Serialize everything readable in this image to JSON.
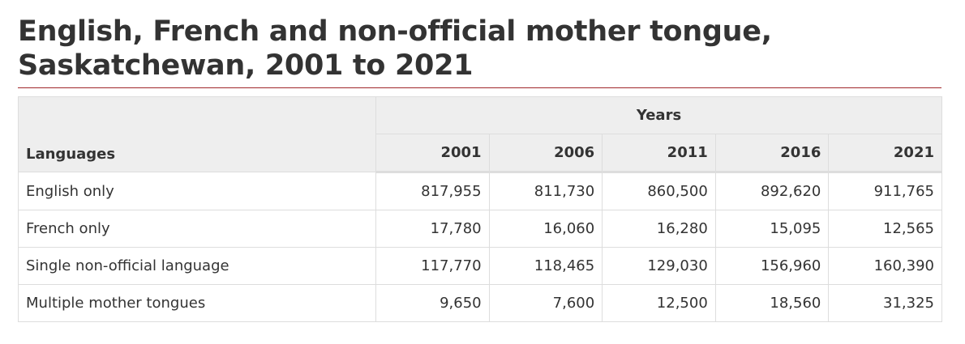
{
  "title": "English, French and non-official mother tongue, Saskatchewan, 2001 to 2021",
  "table": {
    "row_header": "Languages",
    "column_group": "Years",
    "columns": [
      "2001",
      "2006",
      "2011",
      "2016",
      "2021"
    ],
    "rows": [
      {
        "label": "English only",
        "cells": [
          "817,955",
          "811,730",
          "860,500",
          "892,620",
          "911,765"
        ]
      },
      {
        "label": "French only",
        "cells": [
          "17,780",
          "16,060",
          "16,280",
          "15,095",
          "12,565"
        ]
      },
      {
        "label": "Single non-official language",
        "cells": [
          "117,770",
          "118,465",
          "129,030",
          "156,960",
          "160,390"
        ]
      },
      {
        "label": "Multiple mother tongues",
        "cells": [
          "9,650",
          "7,600",
          "12,500",
          "18,560",
          "31,325"
        ]
      }
    ]
  }
}
